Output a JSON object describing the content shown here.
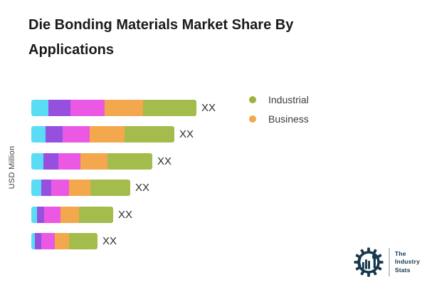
{
  "title": {
    "line1": "Die Bonding Materials Market Share By",
    "line2": "Applications"
  },
  "y_axis_label": "USD Million",
  "chart_data": {
    "type": "bar",
    "orientation": "horizontal",
    "stacked": true,
    "title": "Die Bonding Materials Market Share By Applications",
    "ylabel": "USD Million",
    "value_label": "XX",
    "value_labels_note": "all bar totals are masked as XX in the chart",
    "categories": [
      "",
      "",
      "",
      "",
      "",
      ""
    ],
    "units_of_values": "pixel-proportional segment widths (no numeric axis shown)",
    "series": [
      {
        "name": "",
        "color": "#5adcf5",
        "values": [
          24,
          20,
          17,
          14,
          8,
          5
        ]
      },
      {
        "name": "",
        "color": "#9650e0",
        "values": [
          31,
          24,
          21,
          14,
          10,
          9
        ]
      },
      {
        "name": "",
        "color": "#ea58e4",
        "values": [
          48,
          38,
          31,
          25,
          23,
          19
        ]
      },
      {
        "name": "Business",
        "color": "#f4a84e",
        "values": [
          54,
          49,
          38,
          30,
          26,
          20
        ]
      },
      {
        "name": "Industrial",
        "color": "#a4bc4b",
        "values": [
          75,
          70,
          63,
          56,
          48,
          40
        ]
      }
    ],
    "legend": [
      {
        "label": "Industrial",
        "color": "#9cb43f"
      },
      {
        "label": "Business",
        "color": "#f2a84e"
      }
    ],
    "legend_position": "right-top",
    "grid": false
  },
  "logo": {
    "line1": "The",
    "line2": "Industry",
    "line3": "Stats",
    "color": "#16374d"
  }
}
